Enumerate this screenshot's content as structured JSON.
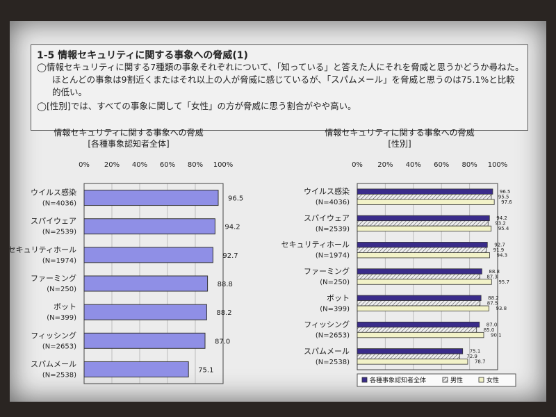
{
  "header": {
    "title": "1-5 情報セキュリティに関する事象への脅威(1)",
    "lines": [
      "◯情報セキュリティに関する7種類の事象それぞれについて、「知っている」と答えた人にそれを脅威と思うかどうか尋ねた。",
      "ほとんどの事象は9割近くまたはそれ以上の人が脅威に感じているが、「スパムメール」を脅威と思うのは75.1%と比較",
      "的低い。",
      "◯[性別]では、すべての事象に関して「女性」の方が脅威に思う割合がやや高い。"
    ]
  },
  "left_chart": {
    "title_line1": "情報セキュリティに関する事象への脅威",
    "title_line2": "[各種事象認知者全体]"
  },
  "right_chart": {
    "title_line1": "情報セキュリティに関する事象への脅威",
    "title_line2": "[性別]"
  },
  "colors": {
    "left_bar": "#8f8fe6",
    "overall": "#3a2c8a",
    "male": "#d8d8d8",
    "female": "#f2f2c8"
  },
  "chart_data": [
    {
      "type": "bar",
      "orientation": "horizontal",
      "title": "情報セキュリティに関する事象への脅威 [各種事象認知者全体]",
      "xlim": [
        0,
        100
      ],
      "ticks": [
        "0%",
        "20%",
        "40%",
        "60%",
        "80%",
        "100%"
      ],
      "categories": [
        "ウイルス感染",
        "スパイウェア",
        "セキュリティホール",
        "ファーミング",
        "ボット",
        "フィッシング",
        "スパムメール"
      ],
      "n_labels": [
        "(N=4036)",
        "(N=2539)",
        "(N=1974)",
        "(N=250)",
        "(N=399)",
        "(N=2653)",
        "(N=2538)"
      ],
      "values": [
        96.5,
        94.2,
        92.7,
        88.8,
        88.2,
        87.0,
        75.1
      ],
      "value_labels": [
        "96.5",
        "94.2",
        "92.7",
        "88.8",
        "88.2",
        "87.0",
        "75.1"
      ]
    },
    {
      "type": "bar",
      "orientation": "horizontal",
      "title": "情報セキュリティに関する事象への脅威 [性別]",
      "xlim": [
        0,
        100
      ],
      "ticks": [
        "0%",
        "20%",
        "40%",
        "60%",
        "80%",
        "100%"
      ],
      "categories": [
        "ウイルス感染",
        "スパイウェア",
        "セキュリティホール",
        "ファーミング",
        "ボット",
        "フィッシング",
        "スパムメール"
      ],
      "n_labels": [
        "(N=4036)",
        "(N=2539)",
        "(N=1974)",
        "(N=250)",
        "(N=399)",
        "(N=2653)",
        "(N=2538)"
      ],
      "series": [
        {
          "name": "各種事象認知者全体",
          "values": [
            96.5,
            94.2,
            92.7,
            88.8,
            88.2,
            87.0,
            75.1
          ],
          "labels": [
            "96.5",
            "94.2",
            "92.7",
            "88.8",
            "88.2",
            "87.0",
            "75.1"
          ]
        },
        {
          "name": "男性",
          "values": [
            95.5,
            93.2,
            91.9,
            87.3,
            87.5,
            85.0,
            72.9
          ],
          "labels": [
            "95.5",
            "93.2",
            "91.9",
            "87.3",
            "87.5",
            "85.0",
            "72.9"
          ]
        },
        {
          "name": "女性",
          "values": [
            97.6,
            95.4,
            94.3,
            95.7,
            93.8,
            90.1,
            78.7
          ],
          "labels": [
            "97.6",
            "95.4",
            "94.3",
            "95.7",
            "93.8",
            "90.1",
            "78.7"
          ]
        }
      ],
      "legend_position": "bottom"
    }
  ]
}
